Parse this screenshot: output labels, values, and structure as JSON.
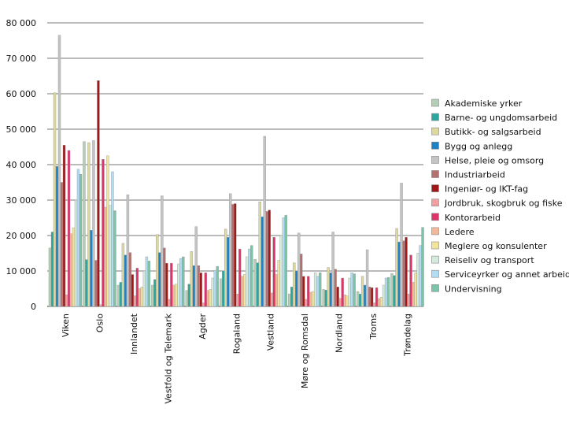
{
  "chart_data": {
    "type": "bar",
    "title": "",
    "xlabel": "",
    "ylabel": "",
    "ylim": [
      0,
      80000
    ],
    "yticks": [
      0,
      10000,
      20000,
      30000,
      40000,
      50000,
      60000,
      70000,
      80000
    ],
    "ytick_labels": [
      "0",
      "10 000",
      "20 000",
      "30 000",
      "40 000",
      "50 000",
      "60 000",
      "70 000",
      "80 000"
    ],
    "grid": true,
    "legend_position": "right",
    "categories": [
      "Viken",
      "Oslo",
      "Innlandet",
      "Vestfold og Telemark",
      "Agder",
      "Rogaland",
      "Vestland",
      "Møre og Romsdal",
      "Nordland",
      "Troms",
      "Trøndelag"
    ],
    "series": [
      {
        "name": "Akademiske yrker",
        "color": "#b5cfb6",
        "values": [
          16500,
          46500,
          6000,
          6000,
          4500,
          7800,
          13300,
          3500,
          4800,
          4200,
          9300
        ]
      },
      {
        "name": "Barne- og ungdomsarbeid",
        "color": "#2aa8a0",
        "values": [
          21000,
          13200,
          6800,
          7600,
          6300,
          10000,
          12300,
          5500,
          4600,
          3500,
          8700
        ]
      },
      {
        "name": "Butikk- og salgsarbeid",
        "color": "#dcd8a0",
        "values": [
          60300,
          46200,
          17800,
          20300,
          15500,
          21800,
          29500,
          12300,
          11000,
          8500,
          22000
        ]
      },
      {
        "name": "Bygg og anlegg",
        "color": "#1f82c4",
        "values": [
          39500,
          21500,
          14500,
          15200,
          11500,
          19500,
          25300,
          10000,
          9500,
          6000,
          18200
        ]
      },
      {
        "name": "Helse, pleie og omsorg",
        "color": "#c4c4c4",
        "values": [
          76500,
          46800,
          31500,
          31200,
          22500,
          31800,
          48000,
          20700,
          21000,
          16000,
          34800
        ]
      },
      {
        "name": "Industriarbeid",
        "color": "#b57070",
        "values": [
          35000,
          13000,
          15200,
          16500,
          11500,
          28800,
          26800,
          14800,
          10500,
          5500,
          18500
        ]
      },
      {
        "name": "Ingeniør- og IKT-fag",
        "color": "#a01818",
        "values": [
          45500,
          63700,
          9000,
          12200,
          9500,
          29000,
          27200,
          8500,
          5500,
          5300,
          19500
        ]
      },
      {
        "name": "Jordbruk, skogbruk og fiske",
        "color": "#f0a0a0",
        "values": [
          3300,
          500,
          3000,
          2000,
          1000,
          3500,
          3800,
          2000,
          2300,
          1000,
          3500
        ]
      },
      {
        "name": "Kontorarbeid",
        "color": "#e0336a",
        "values": [
          44000,
          41500,
          10800,
          12200,
          9500,
          16200,
          19500,
          8500,
          8000,
          5300,
          14500
        ]
      },
      {
        "name": "Ledere",
        "color": "#f3b89a",
        "values": [
          20500,
          28000,
          5000,
          6000,
          4500,
          8500,
          9000,
          4000,
          3300,
          2200,
          6800
        ]
      },
      {
        "name": "Meglere og konsulenter",
        "color": "#f2e49a",
        "values": [
          22200,
          42500,
          5500,
          6300,
          4800,
          9000,
          13000,
          4200,
          3000,
          2600,
          9500
        ]
      },
      {
        "name": "Reiseliv og transport",
        "color": "#d4eadc",
        "values": [
          30000,
          28500,
          10000,
          12000,
          8000,
          14000,
          20000,
          9500,
          8000,
          6000,
          15000
        ]
      },
      {
        "name": "Serviceyrker og annet arbeid",
        "color": "#b0dcf4",
        "values": [
          38700,
          38000,
          14000,
          13500,
          10200,
          16200,
          25000,
          8500,
          9500,
          8000,
          17200
        ]
      },
      {
        "name": "Undervisning",
        "color": "#7cc4a8",
        "values": [
          37300,
          27000,
          12800,
          14000,
          11300,
          17200,
          25700,
          9500,
          9200,
          8200,
          22300
        ]
      }
    ]
  }
}
